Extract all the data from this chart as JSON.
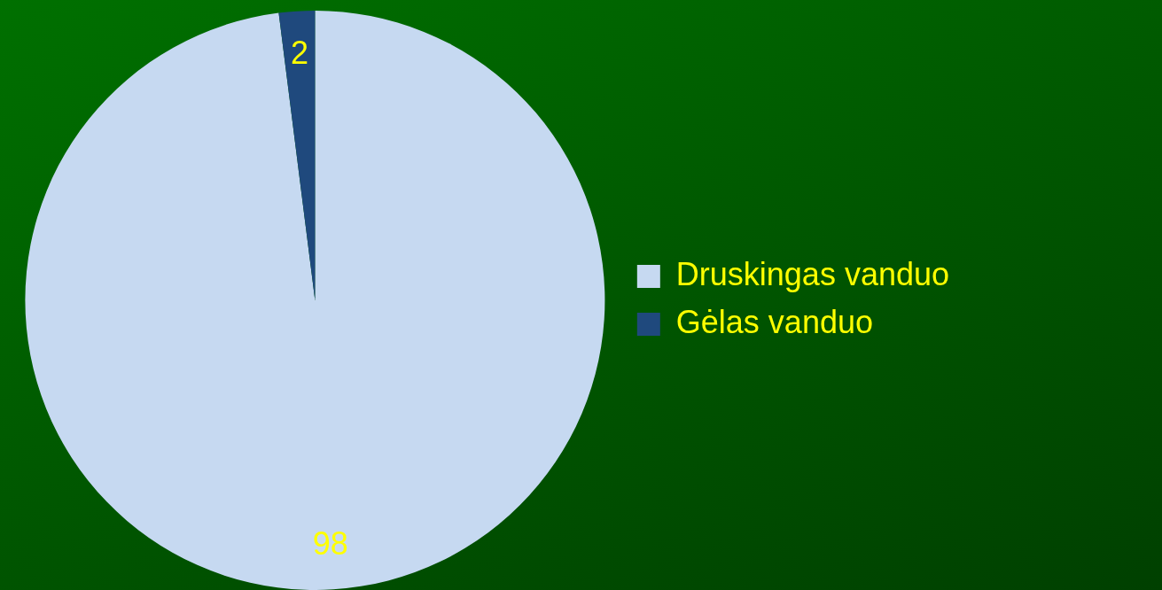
{
  "chart_data": {
    "type": "pie",
    "categories": [
      "Druskingas vanduo",
      "Gėlas vanduo"
    ],
    "values": [
      98,
      2
    ],
    "colors": [
      "#c6d9f1",
      "#1f497d"
    ],
    "legend": "right",
    "data_labels": true
  }
}
